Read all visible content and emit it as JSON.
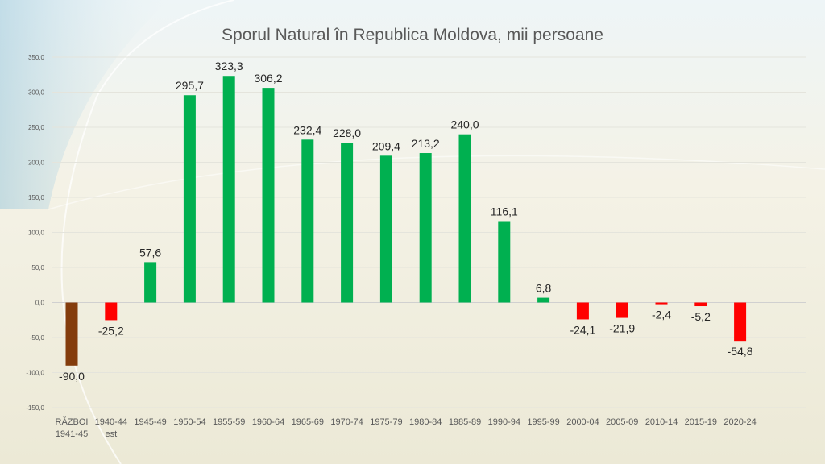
{
  "chart_data": {
    "type": "bar",
    "title": "Sporul Natural în Republica Moldova, mii persoane",
    "categories": [
      [
        "RĂZBOI",
        "1941-45"
      ],
      [
        "1940-44",
        "est"
      ],
      [
        "1945-49"
      ],
      [
        "1950-54"
      ],
      [
        "1955-59"
      ],
      [
        "1960-64"
      ],
      [
        "1965-69"
      ],
      [
        "1970-74"
      ],
      [
        "1975-79"
      ],
      [
        "1980-84"
      ],
      [
        "1985-89"
      ],
      [
        "1990-94"
      ],
      [
        "1995-99"
      ],
      [
        "2000-04"
      ],
      [
        "2005-09"
      ],
      [
        "2010-14"
      ],
      [
        "2015-19"
      ],
      [
        "2020-24"
      ]
    ],
    "values": [
      -90.0,
      -25.2,
      57.6,
      295.7,
      323.3,
      306.2,
      232.4,
      228.0,
      209.4,
      213.2,
      240.0,
      116.1,
      6.8,
      -24.1,
      -21.9,
      -2.4,
      -5.2,
      -54.8
    ],
    "value_labels": [
      "-90,0",
      "-25,2",
      "57,6",
      "295,7",
      "323,3",
      "306,2",
      "232,4",
      "228,0",
      "209,4",
      "213,2",
      "240,0",
      "116,1",
      "6,8",
      "-24,1",
      "-21,9",
      "-2,4",
      "-5,2",
      "-54,8"
    ],
    "bar_colors": [
      "#843c0c",
      "#ff0000",
      "#00b050",
      "#00b050",
      "#00b050",
      "#00b050",
      "#00b050",
      "#00b050",
      "#00b050",
      "#00b050",
      "#00b050",
      "#00b050",
      "#00b050",
      "#ff0000",
      "#ff0000",
      "#ff0000",
      "#ff0000",
      "#ff0000"
    ],
    "yticks": [
      -150,
      -100,
      -50,
      0,
      50,
      100,
      150,
      200,
      250,
      300,
      350
    ],
    "ytick_labels": [
      "-150,0",
      "-100,0",
      "-50,0",
      "0,0",
      "50,0",
      "100,0",
      "150,0",
      "200,0",
      "250,0",
      "300,0",
      "350,0"
    ],
    "ylim": [
      -150,
      350
    ],
    "grid": true,
    "legend": "none"
  }
}
